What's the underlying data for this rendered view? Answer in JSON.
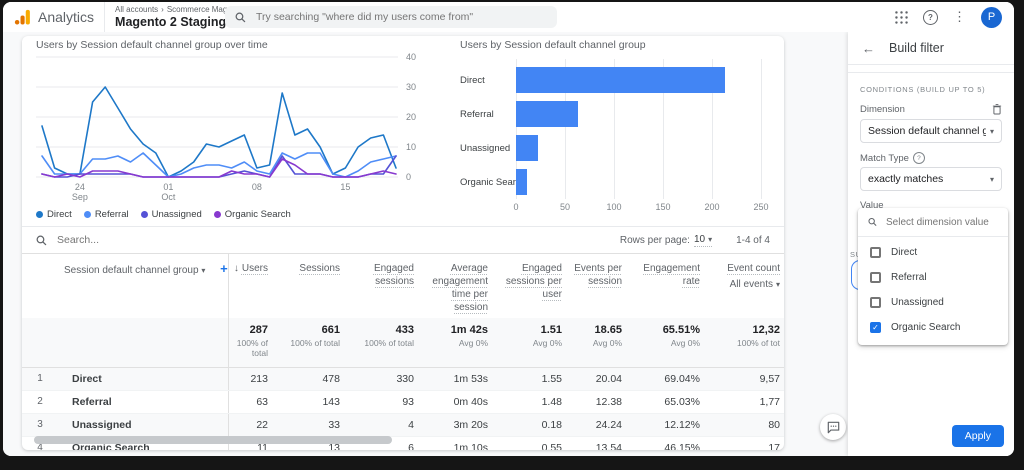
{
  "header": {
    "product_name": "Analytics",
    "breadcrumb_account": "All accounts",
    "breadcrumb_org": "Scommerce Mage",
    "property_name": "Magento 2 Staging",
    "search_placeholder": "Try searching \"where did my users come from\"",
    "avatar_initial": "P"
  },
  "icons": {
    "caret_down": "▾",
    "sort_desc": "↓",
    "plus": "+",
    "back_arrow": "←",
    "kebab": "⋮",
    "help": "?",
    "breadcrumb_chevron": "›",
    "check": "✓"
  },
  "chart_data": [
    {
      "type": "line",
      "title": "Users by Session default channel group over time",
      "ylim": [
        0,
        40
      ],
      "yticks": [
        0,
        10,
        20,
        30,
        40
      ],
      "grid": "horizontal",
      "legend_position": "bottom",
      "xticks": [
        {
          "label": "24",
          "sublabel": "Sep",
          "index": 3
        },
        {
          "label": "01",
          "sublabel": "Oct",
          "index": 10
        },
        {
          "label": "08",
          "sublabel": "",
          "index": 17
        },
        {
          "label": "15",
          "sublabel": "",
          "index": 24
        }
      ],
      "series": [
        {
          "name": "Direct",
          "color": "#1e78c8",
          "values": [
            17,
            3,
            1,
            1,
            25,
            30,
            23,
            16,
            11,
            8,
            0,
            2,
            5,
            11,
            10,
            12,
            14,
            3,
            4,
            28,
            14,
            16,
            10,
            1,
            3,
            10,
            13,
            14,
            3
          ]
        },
        {
          "name": "Referral",
          "color": "#4f8df7",
          "values": [
            7,
            1,
            1,
            1,
            6,
            6,
            7,
            5,
            8,
            4,
            0,
            1,
            3,
            4,
            4,
            3,
            5,
            2,
            1,
            8,
            6,
            8,
            8,
            1,
            0,
            2,
            5,
            6,
            7
          ]
        },
        {
          "name": "Unassigned",
          "color": "#5552d6",
          "values": [
            1,
            0,
            0,
            1,
            1,
            1,
            1,
            1,
            0,
            0,
            0,
            0,
            0,
            0,
            0,
            1,
            2,
            1,
            0,
            7,
            1,
            1,
            1,
            0,
            0,
            0,
            1,
            1,
            7
          ]
        },
        {
          "name": "Organic Search",
          "color": "#8839cf",
          "values": [
            1,
            0,
            1,
            0,
            2,
            2,
            2,
            1,
            0,
            0,
            0,
            0,
            0,
            0,
            0,
            2,
            1,
            1,
            0,
            6,
            4,
            1,
            1,
            0,
            0,
            0,
            1,
            2,
            1
          ]
        }
      ]
    },
    {
      "type": "bar",
      "orientation": "horizontal",
      "title": "Users by Session default channel group",
      "categories": [
        "Direct",
        "Referral",
        "Unassigned",
        "Organic Search"
      ],
      "values": [
        213,
        63,
        22,
        11
      ],
      "bar_color": "#4285f4",
      "xlim": [
        0,
        250
      ],
      "xticks": [
        0,
        50,
        100,
        150,
        200,
        250
      ]
    }
  ],
  "table": {
    "search_placeholder": "Search...",
    "rows_per_page_label": "Rows per page:",
    "rows_per_page_value": "10",
    "pagination_range": "1-4 of 4",
    "dimension_column": "Session default channel group",
    "sorted_column": "Users",
    "metric_columns": [
      "Users",
      "Sessions",
      "Engaged sessions",
      "Average engagement time per session",
      "Engaged sessions per user",
      "Events per session",
      "Engagement rate",
      "Event count"
    ],
    "event_count_filter": "All events",
    "totals": {
      "values": [
        "287",
        "661",
        "433",
        "1m 42s",
        "1.51",
        "18.65",
        "65.51%",
        "12,32"
      ],
      "subtexts": [
        "100% of total",
        "100% of total",
        "100% of total",
        "Avg 0%",
        "Avg 0%",
        "Avg 0%",
        "Avg 0%",
        "100% of tot"
      ]
    },
    "rows": [
      {
        "index": "1",
        "channel": "Direct",
        "values": [
          "213",
          "478",
          "330",
          "1m 53s",
          "1.55",
          "20.04",
          "69.04%",
          "9,57"
        ]
      },
      {
        "index": "2",
        "channel": "Referral",
        "values": [
          "63",
          "143",
          "93",
          "0m 40s",
          "1.48",
          "12.38",
          "65.03%",
          "1,77"
        ]
      },
      {
        "index": "3",
        "channel": "Unassigned",
        "values": [
          "22",
          "33",
          "4",
          "3m 20s",
          "0.18",
          "24.24",
          "12.12%",
          "80"
        ]
      },
      {
        "index": "4",
        "channel": "Organic Search",
        "values": [
          "11",
          "13",
          "6",
          "1m 10s",
          "0.55",
          "13.54",
          "46.15%",
          "17"
        ]
      }
    ]
  },
  "filter_panel": {
    "title": "Build filter",
    "conditions_heading": "CONDITIONS (BUILD UP TO 5)",
    "dimension_label": "Dimension",
    "dimension_value": "Session default channel gro",
    "match_type_label": "Match Type",
    "match_type_value": "exactly matches",
    "value_label": "Value",
    "value_selected": "Organic Search",
    "summary_heading_clipped": "SU",
    "apply_label": "Apply",
    "accent_color": "#1a73e8",
    "dropdown": {
      "search_placeholder": "Select dimension value",
      "options": [
        {
          "label": "Direct",
          "checked": false
        },
        {
          "label": "Referral",
          "checked": false
        },
        {
          "label": "Unassigned",
          "checked": false
        },
        {
          "label": "Organic Search",
          "checked": true
        }
      ]
    }
  }
}
